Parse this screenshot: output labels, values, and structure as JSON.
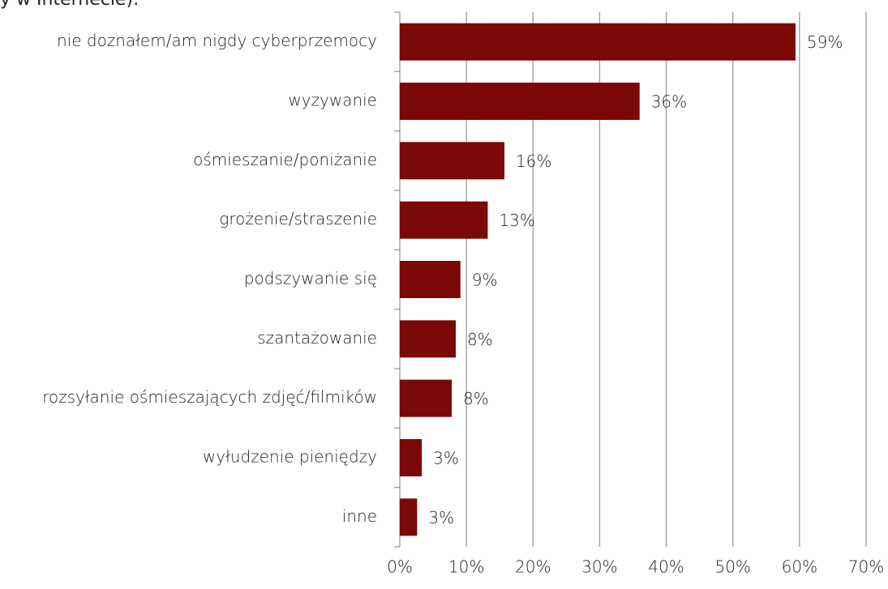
{
  "chart_data": {
    "type": "hbar",
    "title": "y w Internecie):",
    "categories": [
      "nie doznałem/am nigdy cyberprzemocy",
      "wyzywanie",
      "ośmieszanie/poniżanie",
      "grożenie/straszenie",
      "podszywanie się",
      "szantażowanie",
      "rozsyłanie ośmieszających zdjęć/filmików",
      "wyłudzenie pieniędzy",
      "inne"
    ],
    "values": [
      59.4,
      36,
      15.7,
      13.2,
      9.1,
      8.4,
      7.8,
      3.3,
      2.6
    ],
    "value_labels": [
      "59%",
      "36%",
      "16%",
      "13%",
      "9%",
      "8%",
      "8%",
      "3%",
      "3%"
    ],
    "color": "#7b0707",
    "xlim": [
      0,
      70
    ],
    "xticks": [
      {
        "value": 0,
        "label": "0%"
      },
      {
        "value": 10,
        "label": "10%"
      },
      {
        "value": 20,
        "label": "20%"
      },
      {
        "value": 30,
        "label": "30%"
      },
      {
        "value": 40,
        "label": "40%"
      },
      {
        "value": 50,
        "label": "50%"
      },
      {
        "value": 60,
        "label": "60%"
      },
      {
        "value": 70,
        "label": "70%"
      }
    ],
    "grid": true
  }
}
